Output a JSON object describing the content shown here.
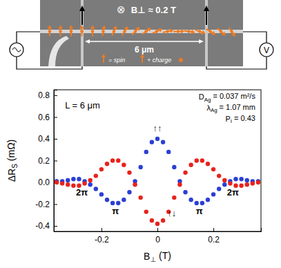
{
  "device": {
    "field_symbol": "⊗",
    "field_label": "B⊥ ≈ 0.2 T",
    "length_label": "6 μm",
    "spin_label": "= spin",
    "charge_label": "+ charge",
    "meter_label": "V"
  },
  "chart_data": {
    "type": "scatter",
    "marker": "circle",
    "xlabel": {
      "text": "B",
      "sub": "⊥",
      "tail": " (T)"
    },
    "ylabel": {
      "text": "ΔR",
      "sub": "S",
      "tail": " (mΩ)"
    },
    "xlim": [
      -0.37,
      0.37
    ],
    "xticks": [
      -0.2,
      0,
      0.2
    ],
    "ylim": [
      -0.45,
      0.85
    ],
    "yticks": [
      -0.4,
      -0.2,
      {
        "value": 0,
        "label": "0.0"
      },
      0.2,
      0.4,
      0.6,
      0.8
    ],
    "x": [
      -0.36,
      -0.34,
      -0.32,
      -0.3,
      -0.28,
      -0.26,
      -0.24,
      -0.22,
      -0.2,
      -0.18,
      -0.16,
      -0.14,
      -0.12,
      -0.1,
      -0.08,
      -0.06,
      -0.04,
      -0.02,
      0,
      0.02,
      0.04,
      0.06,
      0.08,
      0.1,
      0.12,
      0.14,
      0.16,
      0.18,
      0.2,
      0.22,
      0.24,
      0.26,
      0.28,
      0.3,
      0.32,
      0.34,
      0.36
    ],
    "series": [
      {
        "color": "#2b3fd4",
        "values": [
          0.01,
          0.01,
          0.02,
          0.03,
          0.03,
          0.01,
          -0.02,
          -0.06,
          -0.11,
          -0.16,
          -0.19,
          -0.19,
          -0.16,
          -0.09,
          0.01,
          0.14,
          0.28,
          0.37,
          0.4,
          0.37,
          0.28,
          0.14,
          0.01,
          -0.09,
          -0.16,
          -0.19,
          -0.19,
          -0.16,
          -0.11,
          -0.06,
          -0.02,
          0.01,
          0.03,
          0.03,
          0.02,
          0.01,
          0.01
        ]
      },
      {
        "color": "#e8221c",
        "values": [
          0.0,
          -0.01,
          -0.02,
          -0.03,
          -0.03,
          -0.01,
          0.02,
          0.06,
          0.12,
          0.17,
          0.2,
          0.2,
          0.16,
          0.09,
          -0.02,
          -0.14,
          -0.27,
          -0.35,
          -0.38,
          -0.35,
          -0.27,
          -0.14,
          -0.02,
          0.09,
          0.16,
          0.2,
          0.2,
          0.17,
          0.12,
          0.06,
          0.02,
          -0.01,
          -0.03,
          -0.03,
          -0.02,
          -0.01,
          0.0
        ]
      }
    ],
    "annotations": [
      {
        "text": "L = 6 μm",
        "x": -0.33,
        "y": 0.68,
        "anchor": "start"
      },
      {
        "text": "D",
        "sub": "Ag",
        "tail": " = 0.037 m²/s",
        "x": 0.35,
        "y": 0.76,
        "anchor": "end"
      },
      {
        "text": "λ",
        "sub": "Ag",
        "tail": " = 1.07 mm",
        "x": 0.35,
        "y": 0.66,
        "anchor": "end"
      },
      {
        "text": "P",
        "sub": "I",
        "tail": " = 0.43",
        "x": 0.35,
        "y": 0.56,
        "anchor": "end"
      },
      {
        "text": "↑↑",
        "x": 0.0,
        "y": 0.47,
        "anchor": "middle"
      },
      {
        "text": "↑↓",
        "x": 0.035,
        "y": -0.31,
        "anchor": "start"
      },
      {
        "text": "2π",
        "x": -0.27,
        "y": -0.12,
        "anchor": "middle"
      },
      {
        "text": "π",
        "x": -0.15,
        "y": -0.29,
        "anchor": "middle"
      },
      {
        "text": "π",
        "x": 0.15,
        "y": -0.29,
        "anchor": "middle"
      },
      {
        "text": "2π",
        "x": 0.27,
        "y": -0.12,
        "anchor": "middle"
      }
    ]
  }
}
